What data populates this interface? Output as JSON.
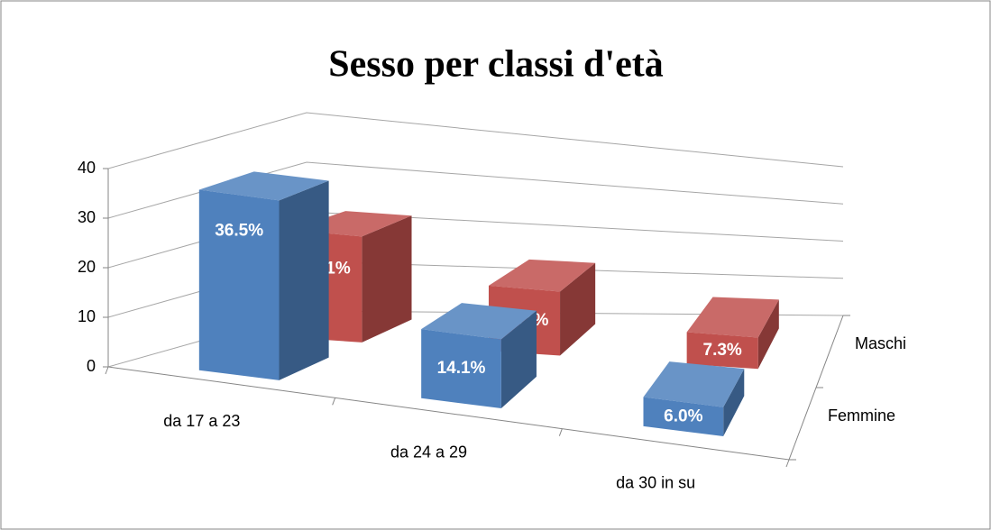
{
  "chart_data": {
    "type": "bar3d",
    "title": "Sesso per classi d'età",
    "categories": [
      "da 17 a 23",
      "da 24 a 29",
      "da 30 in su"
    ],
    "series": [
      {
        "name": "Femmine",
        "color": "#4f81bd",
        "values": [
          36.5,
          14.1,
          6.0
        ],
        "value_labels": [
          "36.5%",
          "14.1%",
          "6.0%"
        ]
      },
      {
        "name": "Maschi",
        "color": "#c0504d",
        "values": [
          22.1,
          14.1,
          7.3
        ],
        "value_labels": [
          "22.1%",
          "14.1%",
          "7.3%"
        ]
      }
    ],
    "ylim": [
      0,
      40
    ],
    "yticks": [
      0,
      10,
      20,
      30,
      40
    ],
    "grid": true
  }
}
